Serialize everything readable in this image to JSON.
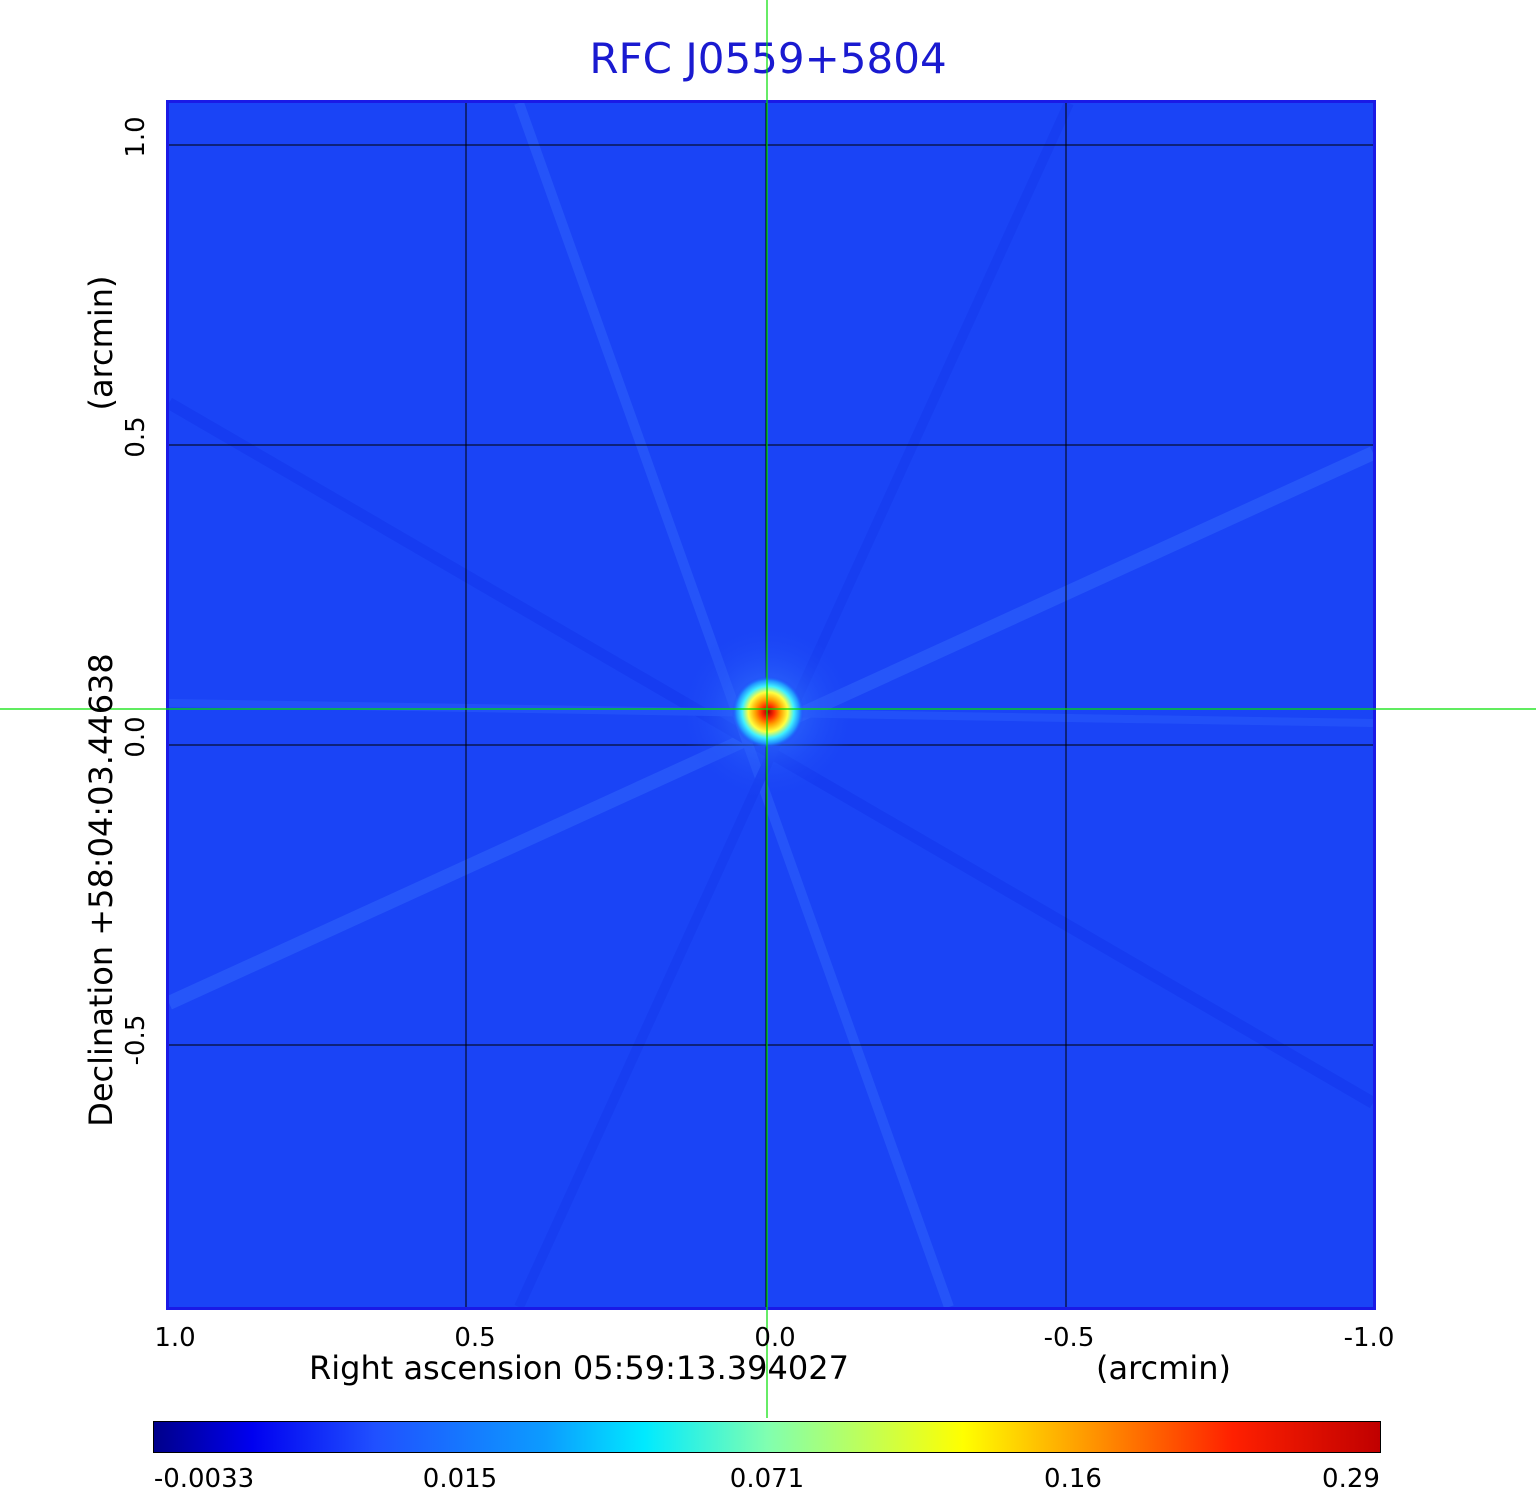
{
  "title": "RFC J0559+5804",
  "axes": {
    "xlabel": "Right ascension  05:59:13.394027",
    "xunit": "(arcmin)",
    "ylabel": "Declination  +58:04:03.44638",
    "yunit": "(arcmin)",
    "xticks": [
      "1.0",
      "0.5",
      "0.0",
      "-0.5",
      "-1.0"
    ],
    "yticks": [
      "1.0",
      "0.5",
      "0.0",
      "-0.5"
    ]
  },
  "colorbar": {
    "ticks": [
      "-0.0033",
      "0.015",
      "0.071",
      "0.16",
      "0.29"
    ]
  },
  "colors": {
    "background_map": "#1a44f6",
    "title": "#1a1ad0",
    "crosshair": "#00e000"
  }
}
